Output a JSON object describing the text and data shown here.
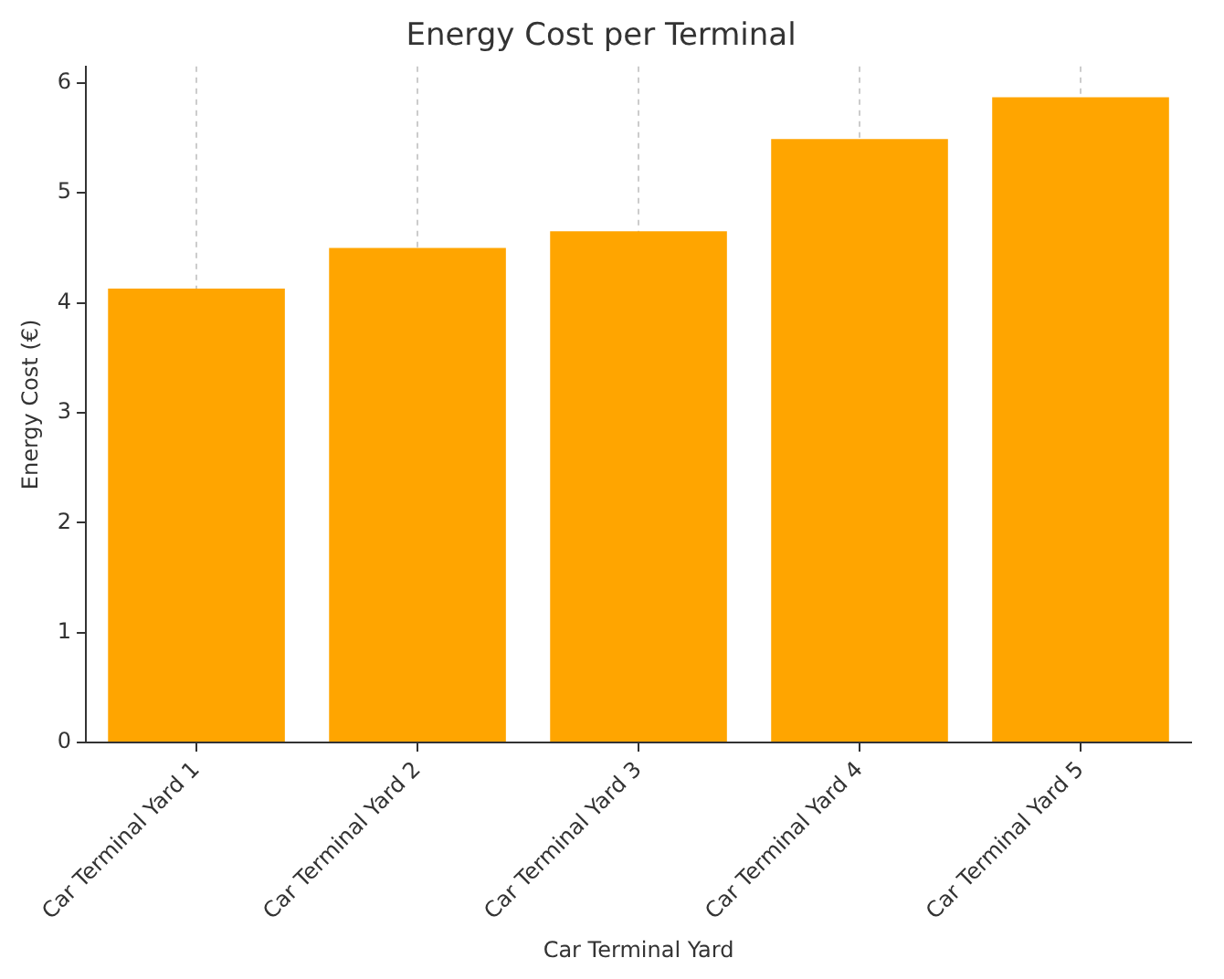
{
  "chart_data": {
    "type": "bar",
    "title": "Energy Cost per Terminal",
    "xlabel": "Car Terminal Yard",
    "ylabel": "Energy Cost (€)",
    "categories": [
      "Car Terminal Yard 1",
      "Car Terminal Yard 2",
      "Car Terminal Yard 3",
      "Car Terminal Yard 4",
      "Car Terminal Yard 5"
    ],
    "values": [
      4.13,
      4.5,
      4.65,
      5.49,
      5.87
    ],
    "color": "#ffa500",
    "ylim": [
      0,
      6.15
    ],
    "yticks": [
      0,
      1,
      2,
      3,
      4,
      5,
      6
    ],
    "grid": "x"
  }
}
